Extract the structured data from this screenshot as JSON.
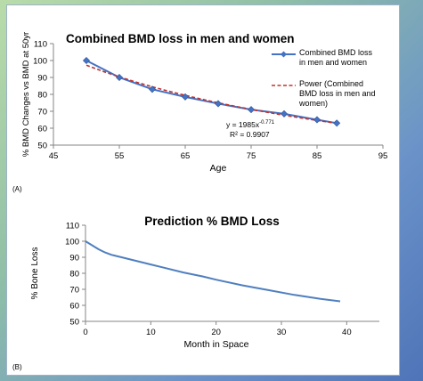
{
  "chart_data": [
    {
      "type": "line",
      "title": "Combined BMD loss in men and women",
      "xlabel": "Age",
      "ylabel": "% BMD Changes vs BMD at 50yr",
      "xlim": [
        45,
        95
      ],
      "ylim": [
        50,
        110
      ],
      "xticks": [
        45,
        55,
        65,
        75,
        85,
        95
      ],
      "yticks": [
        50,
        60,
        70,
        80,
        90,
        100,
        110
      ],
      "grid": false,
      "legend_position": "top-right",
      "series": [
        {
          "name": "Combined BMD loss in men and women",
          "style": "solid-markers",
          "color": "#4472c4",
          "x": [
            50,
            55,
            60,
            65,
            70,
            75,
            80,
            85,
            88
          ],
          "y": [
            100,
            90,
            83,
            78.5,
            74.5,
            71,
            68.5,
            65,
            63
          ]
        },
        {
          "name": "Power (Combined BMD loss in men and women)",
          "style": "dashed",
          "color": "#c0312f",
          "fit": {
            "a": 1985,
            "b": -0.771
          },
          "x_range": [
            50,
            88
          ]
        }
      ],
      "annotation": {
        "equation_prefix": "y = 1985x",
        "equation_exp": "-0.771",
        "r2": "R² = 0.9907"
      },
      "panel_label": "(A)"
    },
    {
      "type": "line",
      "title": "Prediction % BMD Loss",
      "xlabel": "Month in Space",
      "ylabel": "% Bone Loss",
      "xlim": [
        0,
        45
      ],
      "ylim": [
        50,
        110
      ],
      "xticks": [
        0,
        10,
        20,
        30,
        40
      ],
      "yticks": [
        50,
        60,
        70,
        80,
        90,
        100,
        110
      ],
      "grid": false,
      "series": [
        {
          "color": "#4f7fbf",
          "x": [
            0,
            1,
            2,
            3,
            4,
            6,
            8,
            10,
            12,
            15,
            18,
            20,
            24,
            28,
            32,
            36,
            39
          ],
          "y": [
            100,
            97.5,
            95,
            93,
            91.5,
            89.5,
            87.5,
            85.5,
            83.5,
            80.5,
            78,
            76,
            72.5,
            69.5,
            66.5,
            64,
            62.5
          ]
        }
      ],
      "panel_label": "(B)"
    }
  ]
}
